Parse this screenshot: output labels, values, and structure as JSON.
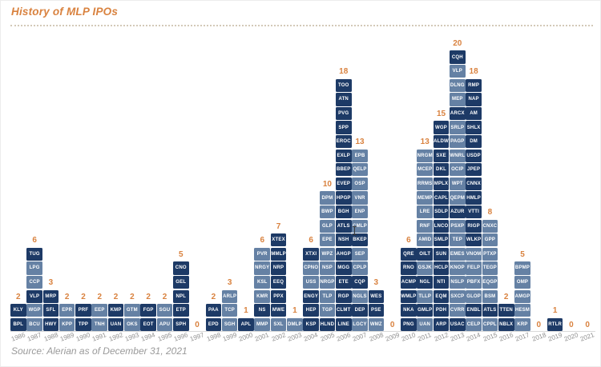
{
  "title": "History of MLP IPOs",
  "source": "Source: Alerian as of December 31, 2021",
  "colors": {
    "accent_orange": "#d9823f",
    "dark_block": "#1d3a66",
    "light_block": "#6581a4",
    "block_text": "#ffffff",
    "axis_line": "#d9d9d9",
    "year_label": "#8f8f8f",
    "source_text": "#9a9a9a",
    "dotted_rule": "#d3c9b8"
  },
  "chart_data": {
    "type": "bar",
    "title": "History of MLP IPOs",
    "ylabel": "Number of MLP IPOs (count shown above each bar)",
    "ylim": [
      0,
      20
    ],
    "grid": false,
    "legend": "none",
    "categories": [
      "1986",
      "1987",
      "1988",
      "1989",
      "1990",
      "1991",
      "1992",
      "1993",
      "1994",
      "1995",
      "1996",
      "1997",
      "1998",
      "1999",
      "2000",
      "2001",
      "2002",
      "2003",
      "2004",
      "2005",
      "2006",
      "2007",
      "2008",
      "2009",
      "2010",
      "2011",
      "2012",
      "2013",
      "2014",
      "2015",
      "2016",
      "2017",
      "2018",
      "2019",
      "2020",
      "2021"
    ],
    "values": [
      2,
      6,
      3,
      2,
      2,
      2,
      2,
      2,
      2,
      2,
      5,
      0,
      2,
      3,
      1,
      6,
      7,
      1,
      6,
      10,
      18,
      13,
      3,
      0,
      6,
      13,
      15,
      20,
      18,
      8,
      2,
      5,
      0,
      1,
      0,
      0
    ],
    "years": [
      {
        "year": "1986",
        "count": 2,
        "tickers": [
          "KLY",
          "BPL"
        ],
        "shades": "dd"
      },
      {
        "year": "1987",
        "count": 6,
        "tickers": [
          "TUG",
          "LPG",
          "CCP",
          "VLP",
          "WGP",
          "BCU"
        ],
        "shades": "dlldll"
      },
      {
        "year": "1988",
        "count": 3,
        "tickers": [
          "MRP",
          "SFL",
          "HWY"
        ],
        "shades": "ddd"
      },
      {
        "year": "1989",
        "count": 2,
        "tickers": [
          "EPR",
          "KPP"
        ],
        "shades": "ll"
      },
      {
        "year": "1990",
        "count": 2,
        "tickers": [
          "PRF",
          "TPP"
        ],
        "shades": "dd"
      },
      {
        "year": "1991",
        "count": 2,
        "tickers": [
          "EEP",
          "TNH"
        ],
        "shades": "ll"
      },
      {
        "year": "1992",
        "count": 2,
        "tickers": [
          "KMP",
          "UAN"
        ],
        "shades": "dd"
      },
      {
        "year": "1993",
        "count": 2,
        "tickers": [
          "GTM",
          "OKS"
        ],
        "shades": "ll"
      },
      {
        "year": "1994",
        "count": 2,
        "tickers": [
          "FGP",
          "EOT"
        ],
        "shades": "dd"
      },
      {
        "year": "1995",
        "count": 2,
        "tickers": [
          "SGU",
          "APU"
        ],
        "shades": "ll"
      },
      {
        "year": "1996",
        "count": 5,
        "tickers": [
          "CNO",
          "GEL",
          "NPL",
          "ETP",
          "SPH"
        ],
        "shades": "ddddd"
      },
      {
        "year": "1997",
        "count": 0,
        "tickers": [],
        "shades": ""
      },
      {
        "year": "1998",
        "count": 2,
        "tickers": [
          "PAA",
          "EPD"
        ],
        "shades": "dd"
      },
      {
        "year": "1999",
        "count": 3,
        "tickers": [
          "ARLP",
          "TCP",
          "SGH"
        ],
        "shades": "lll"
      },
      {
        "year": "2000",
        "count": 1,
        "tickers": [
          "APL"
        ],
        "shades": "d"
      },
      {
        "year": "2001",
        "count": 6,
        "tickers": [
          "PVR",
          "NRGY",
          "KSL",
          "KMR",
          "NS",
          "MMP"
        ],
        "shades": "lllldl"
      },
      {
        "year": "2002",
        "count": 7,
        "tickers": [
          "XTEX",
          "MMLP",
          "NRP",
          "EEQ",
          "PPX",
          "MWE",
          "SXL"
        ],
        "shades": "ddddddl"
      },
      {
        "year": "2003",
        "count": 1,
        "tickers": [
          "DMLP"
        ],
        "shades": "l"
      },
      {
        "year": "2004",
        "count": 6,
        "tickers": [
          "XTXI",
          "CPNO",
          "USS",
          "ENGY",
          "HEP",
          "KSP"
        ],
        "shades": "dllddd"
      },
      {
        "year": "2005",
        "count": 10,
        "tickers": [
          "DPM",
          "BWP",
          "GLP",
          "EPE",
          "WPZ",
          "NSP",
          "NRGP",
          "TLP",
          "TGP",
          "HLND"
        ],
        "shades": "llllllllld"
      },
      {
        "year": "2006",
        "count": 18,
        "tickers": [
          "TOO",
          "ATN",
          "PVG",
          "SPP",
          "EROC",
          "EXLP",
          "BBEP",
          "EVEP",
          "HPGP",
          "BGH",
          "ATLS",
          "NSH",
          "AHGP",
          "MGG",
          "ETE",
          "RGP",
          "CLMT",
          "LINE"
        ],
        "shades": "dddddddddddddddddd"
      },
      {
        "year": "2007",
        "count": 13,
        "tickers": [
          "EPB",
          "QELP",
          "OSP",
          "VNR",
          "ENP",
          "CMLP",
          "BKEP",
          "SEP",
          "CPLP",
          "CQP",
          "NGLS",
          "DEP",
          "LGCY"
        ],
        "shades": "lllllldlldldl"
      },
      {
        "year": "2008",
        "count": 3,
        "tickers": [
          "WES",
          "PSE",
          "WMZ"
        ],
        "shades": "ddl"
      },
      {
        "year": "2009",
        "count": 0,
        "tickers": [],
        "shades": ""
      },
      {
        "year": "2010",
        "count": 6,
        "tickers": [
          "QRE",
          "RNO",
          "ACMP",
          "WMLP",
          "NKA",
          "PNG"
        ],
        "shades": "dddddd"
      },
      {
        "year": "2011",
        "count": 13,
        "tickers": [
          "NRGM",
          "MCEP",
          "RRMS",
          "MEMP",
          "LRE",
          "RNF",
          "AMID",
          "OILT",
          "GSJK",
          "NGL",
          "TLLP",
          "GMLP",
          "UAN"
        ],
        "shades": "llllllldldldl"
      },
      {
        "year": "2012",
        "count": 15,
        "tickers": [
          "WGP",
          "ALDW",
          "SXE",
          "DKL",
          "MPLX",
          "CAPL",
          "SDLP",
          "LNCO",
          "SMLP",
          "SUN",
          "HCLP",
          "NTI",
          "EQM",
          "PDH",
          "ARP"
        ],
        "shades": "ddddddddddddddd"
      },
      {
        "year": "2013",
        "count": 20,
        "tickers": [
          "CQH",
          "VLP",
          "DLNG",
          "MEP",
          "ARCX",
          "SRLP",
          "PAGP",
          "WNRL",
          "OCIP",
          "WPT",
          "QEPM",
          "AZUR",
          "PSXP",
          "TEP",
          "EMES",
          "KNOP",
          "NSLP",
          "SXCP",
          "CVRR",
          "USAC"
        ],
        "shades": "dllldlllllldllllllld"
      },
      {
        "year": "2014",
        "count": 18,
        "tickers": [
          "RMP",
          "NAP",
          "AM",
          "SHLX",
          "DM",
          "USDP",
          "JPEP",
          "CNNX",
          "HMLP",
          "VTTI",
          "RIGP",
          "WLKP",
          "VNOM",
          "FELP",
          "PBFX",
          "GLOP",
          "ENBL",
          "CELP"
        ],
        "shades": "ddddddddddddlllldl"
      },
      {
        "year": "2015",
        "count": 8,
        "tickers": [
          "CNXC",
          "GPP",
          "PTXP",
          "TEGP",
          "EQGP",
          "BSM",
          "ATLS",
          "CPPL"
        ],
        "shades": "lllllldl"
      },
      {
        "year": "2016",
        "count": 2,
        "tickers": [
          "TTEN",
          "NBLX"
        ],
        "shades": "dd"
      },
      {
        "year": "2017",
        "count": 5,
        "tickers": [
          "BPMP",
          "OMP",
          "AMGP",
          "HESM",
          "KRP"
        ],
        "shades": "lllll"
      },
      {
        "year": "2018",
        "count": 0,
        "tickers": [],
        "shades": ""
      },
      {
        "year": "2019",
        "count": 1,
        "tickers": [
          "RTLR"
        ],
        "shades": "d"
      },
      {
        "year": "2020",
        "count": 0,
        "tickers": [],
        "shades": ""
      },
      {
        "year": "2021",
        "count": 0,
        "tickers": [],
        "shades": ""
      }
    ]
  }
}
